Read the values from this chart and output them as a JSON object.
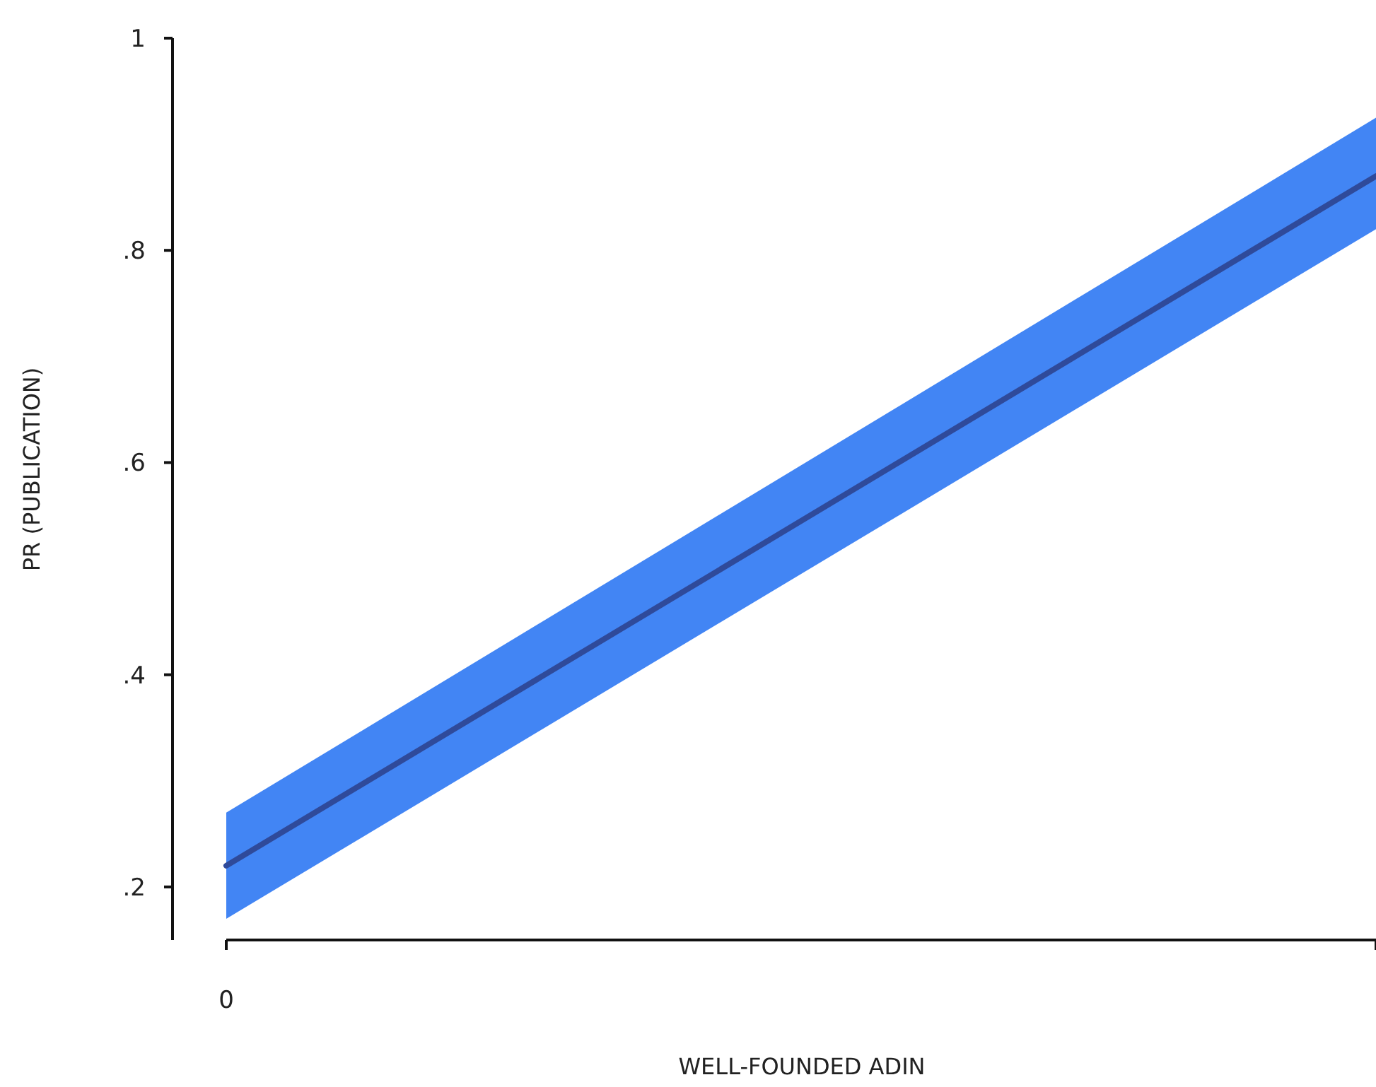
{
  "chart_data": {
    "type": "line",
    "xlabel": "WELL-FOUNDED ADIN",
    "ylabel": "PR (PUBLICATION)",
    "categories": [
      "0",
      null
    ],
    "series": [
      {
        "color": "#2f4a9a",
        "values": [
          0.22,
          0.87
        ],
        "lower": [
          0.17,
          0.82
        ],
        "upper": [
          0.27,
          0.925
        ]
      }
    ],
    "ylim": [
      0.15,
      1
    ],
    "yticks": [
      {
        "value": 0.2,
        "label": ".2"
      },
      {
        "value": 0.4,
        "label": ".4"
      },
      {
        "value": 0.6,
        "label": ".6"
      },
      {
        "value": 0.8,
        "label": ".8"
      },
      1
    ],
    "line_style": "solid"
  }
}
